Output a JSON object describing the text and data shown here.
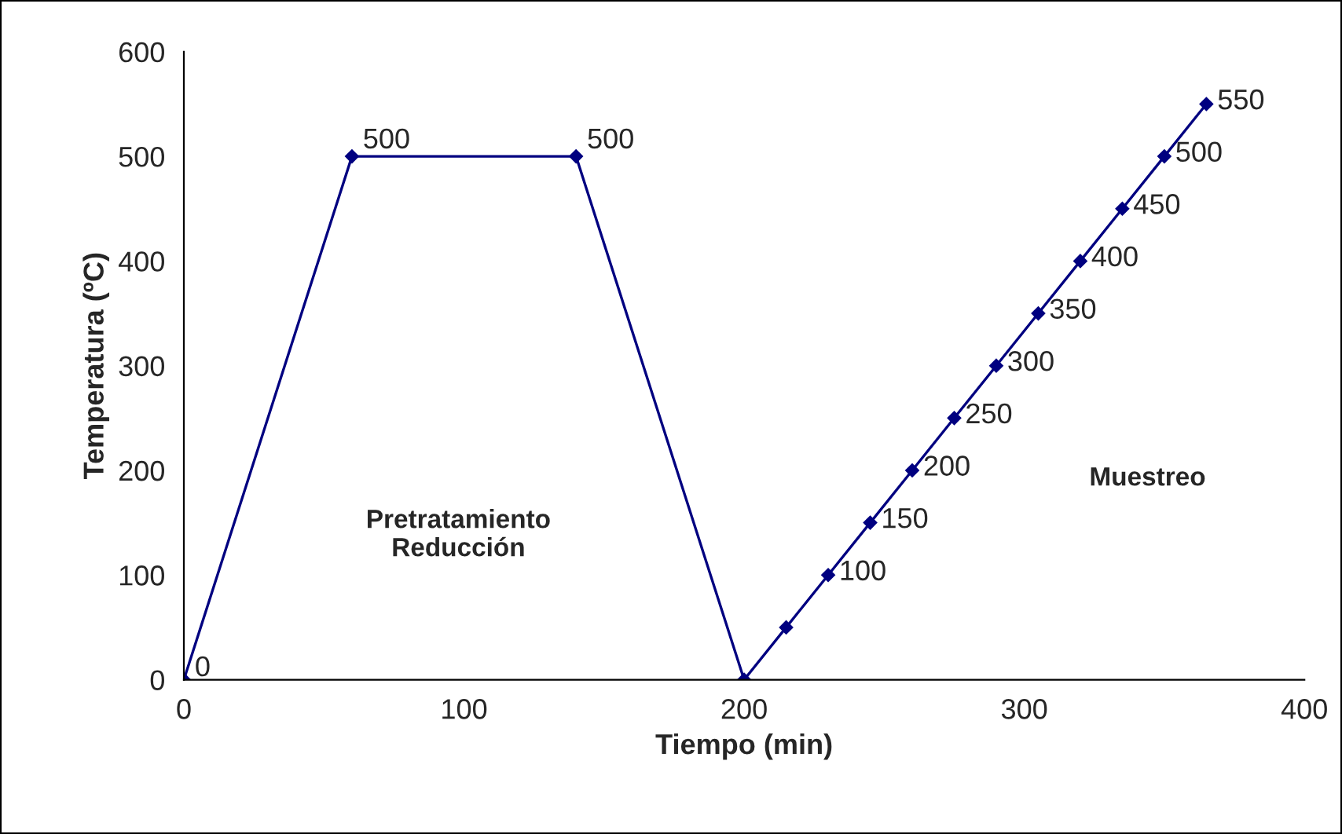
{
  "chart_data": {
    "type": "line",
    "xlabel": "Tiempo (min)",
    "ylabel": "Temperatura (ºC)",
    "x": [
      0,
      60,
      140,
      200,
      215,
      230,
      245,
      260,
      275,
      290,
      305,
      320,
      335,
      350,
      365
    ],
    "series": [
      {
        "color": "#000080",
        "values": [
          0,
          500,
          500,
          0,
          50,
          100,
          150,
          200,
          250,
          300,
          350,
          400,
          450,
          500,
          550
        ],
        "value_labels": [
          "0",
          "500",
          "500",
          null,
          null,
          "100",
          "150",
          "200",
          "250",
          "300",
          "350",
          "400",
          "450",
          "500",
          "550"
        ]
      }
    ],
    "xlim": [
      0,
      400
    ],
    "xticks": [
      0,
      100,
      200,
      300,
      400
    ],
    "ylim": [
      0,
      600
    ],
    "yticks": [
      0,
      100,
      200,
      300,
      400,
      500,
      600
    ],
    "annotations": [
      "Pretratamiento\nReducción",
      "Muestreo"
    ],
    "marker": "diamond",
    "line_style": "solid",
    "grid": false,
    "legend": false
  }
}
